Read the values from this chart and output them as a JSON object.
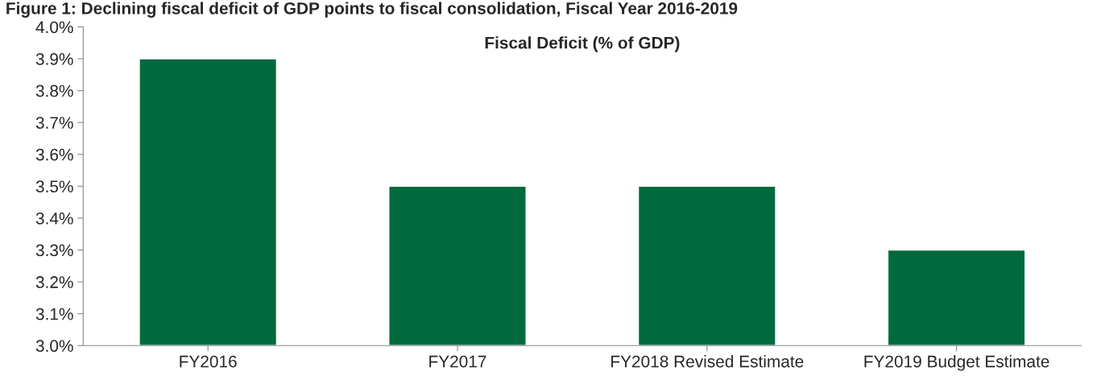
{
  "chart_data": {
    "type": "bar",
    "title": "Figure 1: Declining fiscal deficit of GDP points to fiscal consolidation, Fiscal Year 2016-2019",
    "subtitle": "Fiscal Deficit (% of GDP)",
    "categories": [
      "FY2016",
      "FY2017",
      "FY2018 Revised Estimate",
      "FY2019 Budget Estimate"
    ],
    "values": [
      3.9,
      3.5,
      3.5,
      3.3
    ],
    "color": "#006a3e",
    "ylim": [
      3.0,
      4.0
    ],
    "yticks": [
      {
        "value": 3.0,
        "label": "3.0%"
      },
      {
        "value": 3.1,
        "label": "3.1%"
      },
      {
        "value": 3.2,
        "label": "3.2%"
      },
      {
        "value": 3.3,
        "label": "3.3%"
      },
      {
        "value": 3.4,
        "label": "3.4%"
      },
      {
        "value": 3.5,
        "label": "3.5%"
      },
      {
        "value": 3.6,
        "label": "3.6%"
      },
      {
        "value": 3.7,
        "label": "3.7%"
      },
      {
        "value": 3.8,
        "label": "3.8%"
      },
      {
        "value": 3.9,
        "label": "3.9%"
      },
      {
        "value": 4.0,
        "label": "4.0%"
      }
    ],
    "grid": false,
    "legend": false
  }
}
